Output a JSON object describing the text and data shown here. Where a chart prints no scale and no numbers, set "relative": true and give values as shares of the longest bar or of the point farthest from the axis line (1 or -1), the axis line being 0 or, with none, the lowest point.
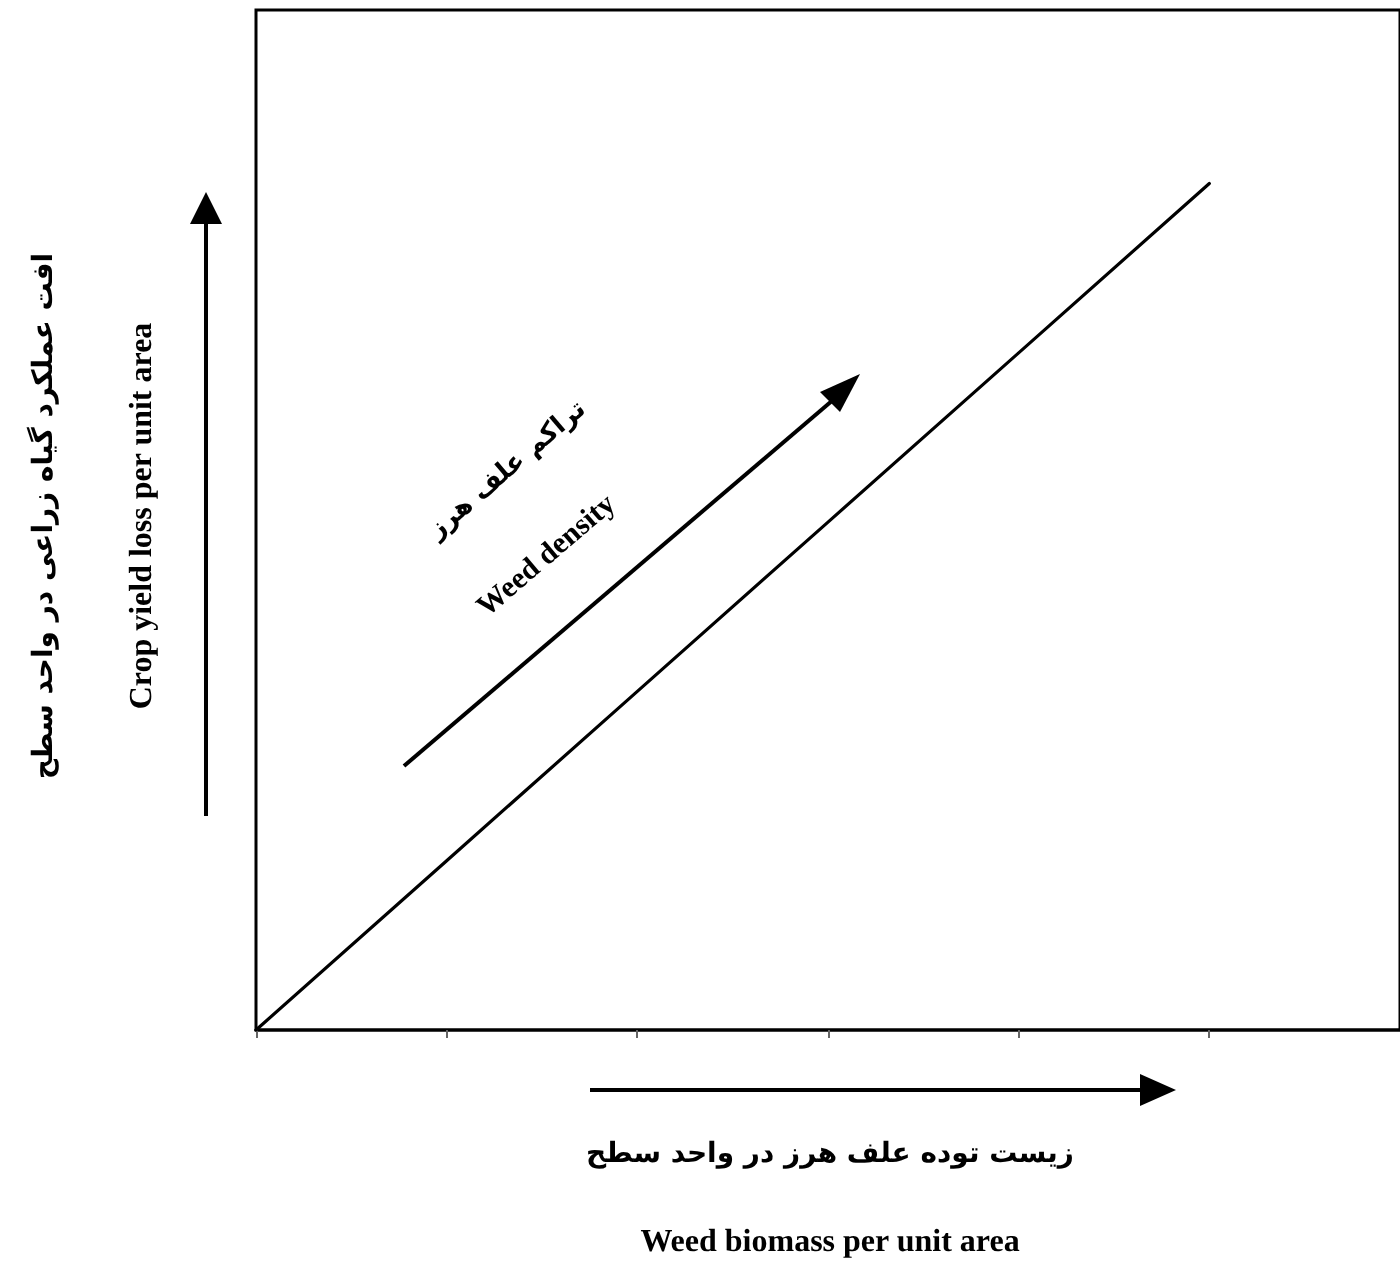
{
  "chart_data": {
    "type": "line",
    "relative": true,
    "xlabel": "زیست توده علف هرز در واحد سطح\nWeed biomass per unit area",
    "ylabel": "افت عملکرد گیاه زراعی در واحد سطح\nCrop yield loss per unit area",
    "annotations": [
      "تراکم علف هرز",
      "Weed density"
    ],
    "categories": [
      null,
      null,
      null,
      null,
      null,
      null,
      null
    ],
    "series": [
      {
        "color": "#000000",
        "values": [
          0,
          0.2,
          0.4,
          0.6,
          0.8,
          1,
          null
        ]
      }
    ],
    "marker": "none",
    "line_style": "solid",
    "grid": false,
    "tick_labels": false
  }
}
